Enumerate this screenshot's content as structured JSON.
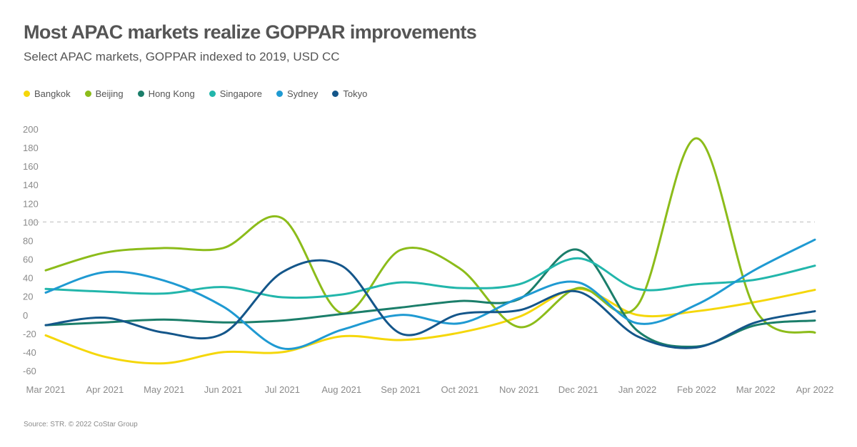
{
  "header": {
    "title": "Most APAC markets realize GOPPAR improvements",
    "subtitle": "Select APAC markets, GOPPAR indexed to 2019, USD CC"
  },
  "footer": {
    "source": "Source: STR. © 2022 CoStar Group"
  },
  "chart_data": {
    "type": "line",
    "title": "Most APAC markets realize GOPPAR improvements",
    "subtitle": "Select APAC markets, GOPPAR indexed to 2019, USD CC",
    "categories": [
      "Mar 2021",
      "Apr 2021",
      "May 2021",
      "Jun 2021",
      "Jul 2021",
      "Aug 2021",
      "Sep 2021",
      "Oct 2021",
      "Nov 2021",
      "Dec 2021",
      "Jan 2022",
      "Feb 2022",
      "Mar 2022",
      "Apr 2022"
    ],
    "ylim": [
      -60,
      200
    ],
    "yticks": [
      -60,
      -40,
      -20,
      0,
      20,
      40,
      60,
      80,
      100,
      120,
      140,
      160,
      180,
      200
    ],
    "reference_line": 100,
    "grid": false,
    "legend_position": "top-left",
    "smooth": true,
    "series": [
      {
        "name": "Bangkok",
        "color": "#F5D70A",
        "values": [
          -22,
          -45,
          -52,
          -40,
          -40,
          -23,
          -27,
          -19,
          -2,
          28,
          0,
          4,
          14,
          27
        ]
      },
      {
        "name": "Beijing",
        "color": "#8CBC1A",
        "values": [
          48,
          67,
          72,
          72,
          104,
          2,
          70,
          50,
          -13,
          29,
          10,
          190,
          5,
          -19
        ]
      },
      {
        "name": "Hong Kong",
        "color": "#1B7E6A",
        "values": [
          -11,
          -8,
          -5,
          -8,
          -6,
          1,
          8,
          15,
          17,
          70,
          -17,
          -34,
          -11,
          -6
        ]
      },
      {
        "name": "Singapore",
        "color": "#22B6AB",
        "values": [
          28,
          25,
          23,
          30,
          19,
          22,
          35,
          29,
          33,
          61,
          28,
          33,
          38,
          53
        ]
      },
      {
        "name": "Sydney",
        "color": "#1F9AD2",
        "values": [
          24,
          46,
          37,
          9,
          -36,
          -16,
          0,
          -9,
          18,
          35,
          -9,
          11,
          49,
          81
        ]
      },
      {
        "name": "Tokyo",
        "color": "#14568A",
        "values": [
          -11,
          -3,
          -19,
          -20,
          46,
          53,
          -20,
          1,
          5,
          25,
          -23,
          -35,
          -8,
          4
        ]
      }
    ]
  }
}
